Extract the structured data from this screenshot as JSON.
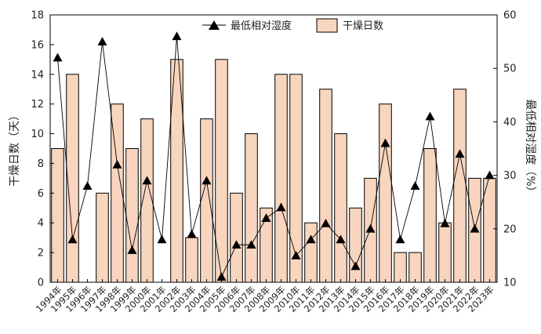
{
  "chart_data": {
    "type": "bar+line",
    "categories": [
      "1994年",
      "1995年",
      "1996年",
      "1997年",
      "1998年",
      "1999年",
      "2000年",
      "2001年",
      "2002年",
      "2003年",
      "2004年",
      "2005年",
      "2006年",
      "2007年",
      "2008年",
      "2009年",
      "2010年",
      "2011年",
      "2012年",
      "2013年",
      "2014年",
      "2015年",
      "2016年",
      "2017年",
      "2018年",
      "2019年",
      "2020年",
      "2021年",
      "2022年",
      "2023年"
    ],
    "series": [
      {
        "name": "干燥日数",
        "kind": "bar",
        "axis": "left",
        "values": [
          9,
          14,
          0,
          6,
          12,
          9,
          11,
          0,
          15,
          3,
          11,
          15,
          6,
          10,
          5,
          14,
          14,
          4,
          13,
          10,
          5,
          7,
          12,
          2,
          2,
          9,
          4,
          13,
          7,
          7
        ]
      },
      {
        "name": "最低相对湿度",
        "kind": "line",
        "axis": "right",
        "values": [
          52,
          18,
          28,
          55,
          32,
          16,
          29,
          18,
          56,
          19,
          29,
          11,
          17,
          17,
          22,
          24,
          15,
          18,
          21,
          18,
          13,
          20,
          36,
          18,
          28,
          41,
          21,
          34,
          20,
          30
        ]
      }
    ],
    "ylabel": "干燥日数（天）",
    "y2label": "最低相对湿度（%）",
    "ylim": [
      0,
      18
    ],
    "y2lim": [
      10,
      60
    ],
    "yticks": [
      0,
      2,
      4,
      6,
      8,
      10,
      12,
      14,
      16,
      18
    ],
    "y2ticks": [
      10,
      20,
      30,
      40,
      50,
      60
    ],
    "legend_position": "top",
    "colors": {
      "bar_fill": "#F8D5BE",
      "bar_stroke": "#000000",
      "line": "#000000"
    }
  }
}
